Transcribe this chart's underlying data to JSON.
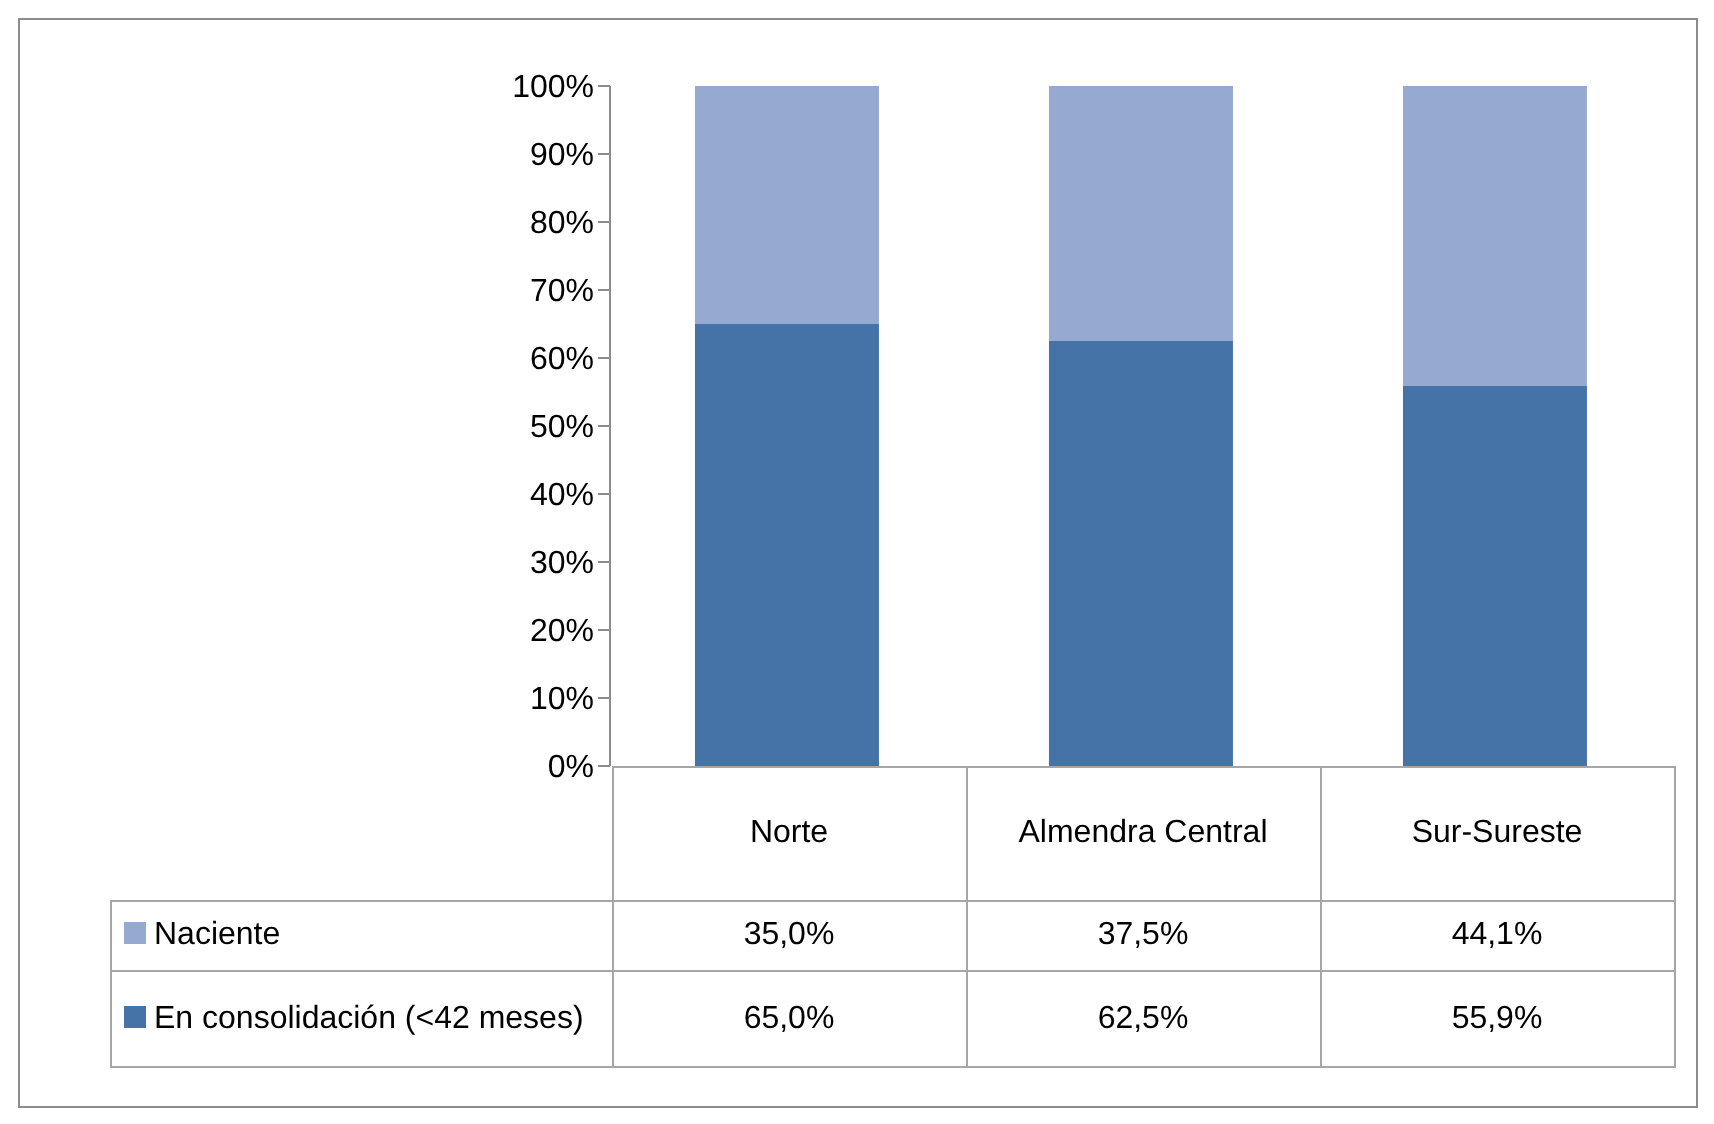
{
  "chart_data": {
    "type": "bar",
    "stacked": true,
    "categories": [
      "Norte",
      "Almendra Central",
      "Sur-Sureste"
    ],
    "series": [
      {
        "name": "En consolidación (<42 meses)",
        "color": "#4572a7",
        "values": [
          65.0,
          62.5,
          55.9
        ],
        "value_labels": [
          "65,0%",
          "62,5%",
          "55,9%"
        ]
      },
      {
        "name": "Naciente",
        "color": "#95a9d1",
        "values": [
          35.0,
          37.5,
          44.1
        ],
        "value_labels": [
          "35,0%",
          "37,5%",
          "44,1%"
        ]
      }
    ],
    "ylim": [
      0,
      100
    ],
    "yticks": [
      {
        "value": 0,
        "label": "0%"
      },
      {
        "value": 10,
        "label": "10%"
      },
      {
        "value": 20,
        "label": "20%"
      },
      {
        "value": 30,
        "label": "30%"
      },
      {
        "value": 40,
        "label": "40%"
      },
      {
        "value": 50,
        "label": "50%"
      },
      {
        "value": 60,
        "label": "60%"
      },
      {
        "value": 70,
        "label": "70%"
      },
      {
        "value": 80,
        "label": "80%"
      },
      {
        "value": 90,
        "label": "90%"
      },
      {
        "value": 100,
        "label": "100%"
      }
    ],
    "legend": "bottom",
    "grid": false
  }
}
